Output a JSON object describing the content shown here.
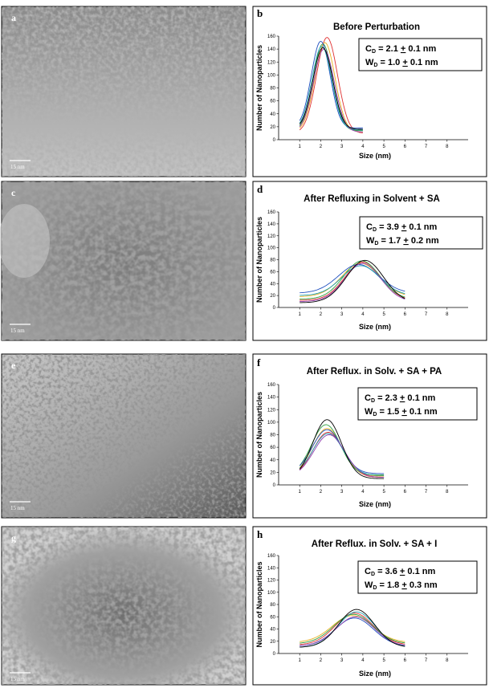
{
  "figure": {
    "scale_bar_label": "15 nm",
    "image_panels": [
      {
        "label": "a"
      },
      {
        "label": "c"
      },
      {
        "label": "e"
      },
      {
        "label": "g"
      }
    ]
  },
  "chart_data": [
    {
      "type": "line",
      "panel_label": "b",
      "title": "Before Perturbation",
      "xlabel": "Size (nm)",
      "ylabel": "Number of Nanoparticles",
      "xlim": [
        0,
        9
      ],
      "ylim": [
        0,
        160
      ],
      "xticks": [
        1,
        2,
        3,
        4,
        5,
        6,
        7,
        8
      ],
      "yticks": [
        0,
        20,
        40,
        60,
        80,
        100,
        120,
        140,
        160
      ],
      "x_range": [
        1,
        4
      ],
      "stats": {
        "cd": "2.1 ",
        "cd_err": "0.1 nm",
        "wd": "1.0 ",
        "wd_err": "0.1 nm"
      },
      "series": [
        {
          "color": "#e03030",
          "mu": 2.3,
          "sigma": 0.5,
          "peak": 158,
          "base": 10
        },
        {
          "color": "#e8b020",
          "mu": 2.2,
          "sigma": 0.48,
          "peak": 150,
          "base": 12
        },
        {
          "color": "#30a040",
          "mu": 2.1,
          "sigma": 0.46,
          "peak": 148,
          "base": 14
        },
        {
          "color": "#2050c0",
          "mu": 2.0,
          "sigma": 0.45,
          "peak": 152,
          "base": 18
        },
        {
          "color": "#20a0b0",
          "mu": 2.05,
          "sigma": 0.47,
          "peak": 144,
          "base": 15
        },
        {
          "color": "#9040b0",
          "mu": 2.15,
          "sigma": 0.49,
          "peak": 140,
          "base": 12
        },
        {
          "color": "#000000",
          "mu": 2.1,
          "sigma": 0.47,
          "peak": 142,
          "base": 16
        }
      ]
    },
    {
      "type": "line",
      "panel_label": "d",
      "title": "After Refluxing in Solvent + SA",
      "xlabel": "Size (nm)",
      "ylabel": "Number of Nanoparticles",
      "xlim": [
        0,
        9
      ],
      "ylim": [
        0,
        160
      ],
      "xticks": [
        1,
        2,
        3,
        4,
        5,
        6,
        7,
        8
      ],
      "yticks": [
        0,
        20,
        40,
        60,
        80,
        100,
        120,
        140,
        160
      ],
      "x_range": [
        1,
        6
      ],
      "stats": {
        "cd": "3.9 ",
        "cd_err": "0.1 nm",
        "wd": "1.7 ",
        "wd_err": "0.2 nm"
      },
      "series": [
        {
          "color": "#e03030",
          "mu": 4.0,
          "sigma": 0.85,
          "peak": 76,
          "base": 12
        },
        {
          "color": "#e8b020",
          "mu": 3.9,
          "sigma": 0.9,
          "peak": 74,
          "base": 18
        },
        {
          "color": "#30a040",
          "mu": 3.95,
          "sigma": 0.85,
          "peak": 78,
          "base": 14
        },
        {
          "color": "#2050c0",
          "mu": 3.8,
          "sigma": 0.95,
          "peak": 72,
          "base": 24
        },
        {
          "color": "#20a0b0",
          "mu": 3.9,
          "sigma": 0.9,
          "peak": 70,
          "base": 20
        },
        {
          "color": "#9040b0",
          "mu": 4.0,
          "sigma": 0.85,
          "peak": 74,
          "base": 10
        },
        {
          "color": "#000000",
          "mu": 4.1,
          "sigma": 0.88,
          "peak": 79,
          "base": 8
        }
      ]
    },
    {
      "type": "line",
      "panel_label": "f",
      "title": "After Reflux. in Solv. + SA + PA",
      "xlabel": "Size (nm)",
      "ylabel": "Number of Nanoparticles",
      "xlim": [
        0,
        9
      ],
      "ylim": [
        0,
        160
      ],
      "xticks": [
        1,
        2,
        3,
        4,
        5,
        6,
        7,
        8
      ],
      "yticks": [
        0,
        20,
        40,
        60,
        80,
        100,
        120,
        140,
        160
      ],
      "x_range": [
        1,
        5
      ],
      "stats": {
        "cd": "2.3 ",
        "cd_err": "0.1 nm",
        "wd": "1.5 ",
        "wd_err": "0.1 nm"
      },
      "series": [
        {
          "color": "#e03030",
          "mu": 2.35,
          "sigma": 0.72,
          "peak": 84,
          "base": 12
        },
        {
          "color": "#e8b020",
          "mu": 2.3,
          "sigma": 0.7,
          "peak": 90,
          "base": 14
        },
        {
          "color": "#30a040",
          "mu": 2.25,
          "sigma": 0.68,
          "peak": 96,
          "base": 16
        },
        {
          "color": "#2050c0",
          "mu": 2.3,
          "sigma": 0.7,
          "peak": 88,
          "base": 18
        },
        {
          "color": "#20a0b0",
          "mu": 2.35,
          "sigma": 0.72,
          "peak": 82,
          "base": 15
        },
        {
          "color": "#9040b0",
          "mu": 2.4,
          "sigma": 0.74,
          "peak": 80,
          "base": 12
        },
        {
          "color": "#000000",
          "mu": 2.3,
          "sigma": 0.68,
          "peak": 104,
          "base": 10
        }
      ]
    },
    {
      "type": "line",
      "panel_label": "h",
      "title": "After Reflux. in Solv. + SA + I",
      "xlabel": "Size (nm)",
      "ylabel": "Number of Nanoparticles",
      "xlim": [
        0,
        9
      ],
      "ylim": [
        0,
        160
      ],
      "xticks": [
        1,
        2,
        3,
        4,
        5,
        6,
        7,
        8
      ],
      "yticks": [
        0,
        20,
        40,
        60,
        80,
        100,
        120,
        140,
        160
      ],
      "x_range": [
        1,
        6
      ],
      "stats": {
        "cd": "3.6 ",
        "cd_err": "0.1 nm",
        "wd": "1.8 ",
        "wd_err": "0.3 nm"
      },
      "series": [
        {
          "color": "#e03030",
          "mu": 3.6,
          "sigma": 0.9,
          "peak": 66,
          "base": 14
        },
        {
          "color": "#e8b020",
          "mu": 3.5,
          "sigma": 0.95,
          "peak": 62,
          "base": 18
        },
        {
          "color": "#30a040",
          "mu": 3.55,
          "sigma": 0.92,
          "peak": 64,
          "base": 16
        },
        {
          "color": "#2050c0",
          "mu": 3.6,
          "sigma": 0.9,
          "peak": 58,
          "base": 12
        },
        {
          "color": "#20a0b0",
          "mu": 3.7,
          "sigma": 0.88,
          "peak": 68,
          "base": 10
        },
        {
          "color": "#9040b0",
          "mu": 3.65,
          "sigma": 0.9,
          "peak": 60,
          "base": 12
        },
        {
          "color": "#000000",
          "mu": 3.7,
          "sigma": 0.85,
          "peak": 72,
          "base": 10
        }
      ]
    }
  ]
}
